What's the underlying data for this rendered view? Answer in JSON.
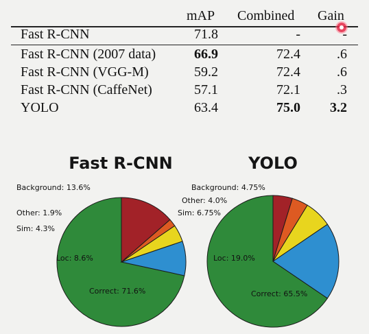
{
  "table": {
    "headers": [
      "mAP",
      "Combined",
      "Gain"
    ],
    "rows": [
      {
        "method": "Fast R-CNN",
        "map": "71.8",
        "combined": "-",
        "gain": "-"
      },
      {
        "method": "Fast R-CNN (2007 data)",
        "map": "66.9",
        "combined": "72.4",
        "gain": ".6"
      },
      {
        "method": "Fast R-CNN (VGG-M)",
        "map": "59.2",
        "combined": "72.4",
        "gain": ".6"
      },
      {
        "method": "Fast R-CNN (CaffeNet)",
        "map": "57.1",
        "combined": "72.1",
        "gain": ".3"
      },
      {
        "method": "YOLO",
        "map": "63.4",
        "combined": "75.0",
        "gain": "3.2"
      }
    ]
  },
  "chart_data": [
    {
      "type": "pie",
      "title": "Fast R-CNN",
      "slices": [
        {
          "label": "Correct: 71.6%",
          "value": 71.6,
          "color": "#2f8a3a"
        },
        {
          "label": "Loc: 8.6%",
          "value": 8.6,
          "color": "#2e8fd0"
        },
        {
          "label": "Sim: 4.3%",
          "value": 4.3,
          "color": "#e8d51e"
        },
        {
          "label": "Other: 1.9%",
          "value": 1.9,
          "color": "#dd5a22"
        },
        {
          "label": "Background: 13.6%",
          "value": 13.6,
          "color": "#a22228"
        }
      ]
    },
    {
      "type": "pie",
      "title": "YOLO",
      "slices": [
        {
          "label": "Correct: 65.5%",
          "value": 65.5,
          "color": "#2f8a3a"
        },
        {
          "label": "Loc: 19.0%",
          "value": 19.0,
          "color": "#2e8fd0"
        },
        {
          "label": "Sim: 6.75%",
          "value": 6.75,
          "color": "#e8d51e"
        },
        {
          "label": "Other: 4.0%",
          "value": 4.0,
          "color": "#dd5a22"
        },
        {
          "label": "Background: 4.75%",
          "value": 4.75,
          "color": "#a22228"
        }
      ]
    }
  ]
}
